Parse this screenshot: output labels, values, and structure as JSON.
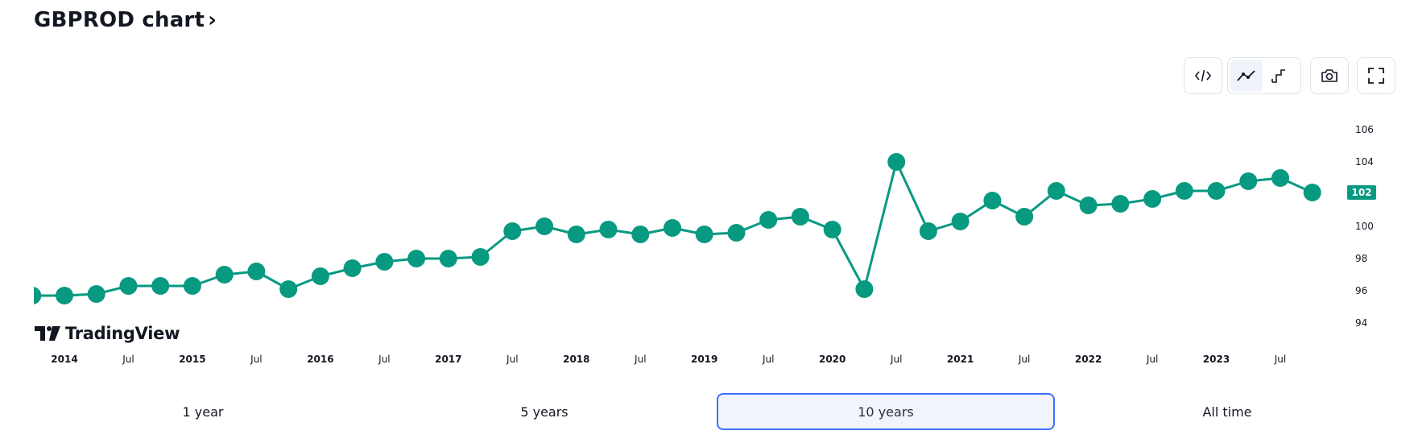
{
  "header": {
    "title": "GBPROD chart",
    "chevron": "›"
  },
  "toolbar": {
    "buttons": [
      {
        "name": "embed-code-icon",
        "active": false
      },
      {
        "name": "line-chart-icon",
        "active": true
      },
      {
        "name": "step-chart-icon",
        "active": false
      },
      {
        "name": "camera-icon",
        "active": false
      },
      {
        "name": "fullscreen-icon",
        "active": false
      }
    ]
  },
  "logo": {
    "text": "TradingView"
  },
  "ranges": [
    {
      "label": "1 year",
      "active": false
    },
    {
      "label": "5 years",
      "active": false
    },
    {
      "label": "10 years",
      "active": true
    },
    {
      "label": "All time",
      "active": false
    }
  ],
  "chart_data": {
    "type": "line",
    "x": [
      "2013-10",
      "2014-01",
      "2014-04",
      "2014-07",
      "2014-10",
      "2015-01",
      "2015-04",
      "2015-07",
      "2015-10",
      "2016-01",
      "2016-04",
      "2016-07",
      "2016-10",
      "2017-01",
      "2017-04",
      "2017-07",
      "2017-10",
      "2018-01",
      "2018-04",
      "2018-07",
      "2018-10",
      "2019-01",
      "2019-04",
      "2019-07",
      "2019-10",
      "2020-01",
      "2020-04",
      "2020-07",
      "2020-10",
      "2021-01",
      "2021-04",
      "2021-07",
      "2021-10",
      "2022-01",
      "2022-04",
      "2022-07",
      "2022-10",
      "2023-01",
      "2023-04",
      "2023-07",
      "2023-10"
    ],
    "series": [
      {
        "values": [
          95.7,
          95.7,
          95.8,
          96.3,
          96.3,
          96.3,
          97.0,
          97.2,
          96.1,
          96.9,
          97.4,
          97.8,
          98.0,
          98.0,
          98.1,
          99.7,
          100.0,
          99.5,
          99.8,
          99.5,
          99.9,
          99.5,
          99.6,
          100.4,
          100.6,
          99.8,
          96.1,
          104.0,
          99.7,
          100.3,
          101.6,
          100.6,
          102.2,
          101.3,
          101.4,
          101.7,
          102.2,
          102.2,
          102.8,
          103.0,
          102.1
        ]
      }
    ],
    "x_ticks": [
      "2014",
      "Jul",
      "2015",
      "Jul",
      "2016",
      "Jul",
      "2017",
      "Jul",
      "2018",
      "Jul",
      "2019",
      "Jul",
      "2020",
      "Jul",
      "2021",
      "Jul",
      "2022",
      "Jul",
      "2023",
      "Jul"
    ],
    "y_ticks": [
      "94",
      "96",
      "98",
      "100",
      "102",
      "104",
      "106"
    ],
    "ylim": [
      94,
      106
    ],
    "last_value_label": "102",
    "line_color": "#089981",
    "grid": false
  }
}
